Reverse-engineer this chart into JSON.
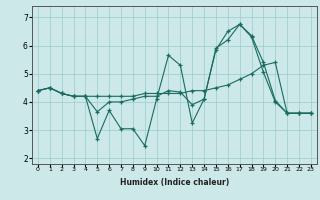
{
  "xlabel": "Humidex (Indice chaleur)",
  "ylabel": "",
  "bg_color": "#cce8e8",
  "line_color": "#1a6b60",
  "grid_color": "#99cccc",
  "xlim": [
    -0.5,
    23.5
  ],
  "ylim": [
    1.8,
    7.4
  ],
  "xticks": [
    0,
    1,
    2,
    3,
    4,
    5,
    6,
    7,
    8,
    9,
    10,
    11,
    12,
    13,
    14,
    15,
    16,
    17,
    18,
    19,
    20,
    21,
    22,
    23
  ],
  "yticks": [
    2,
    3,
    4,
    5,
    6,
    7
  ],
  "series": [
    {
      "x": [
        0,
        1,
        2,
        3,
        4,
        5,
        6,
        7,
        8,
        9,
        10,
        11,
        12,
        13,
        14,
        15,
        16,
        17,
        18,
        19,
        20,
        21,
        22,
        23
      ],
      "y": [
        4.4,
        4.5,
        4.3,
        4.2,
        4.2,
        4.2,
        4.2,
        4.2,
        4.2,
        4.3,
        4.3,
        4.3,
        4.3,
        4.4,
        4.4,
        4.5,
        4.6,
        4.8,
        5.0,
        5.3,
        5.4,
        3.6,
        3.6,
        3.6
      ]
    },
    {
      "x": [
        0,
        1,
        2,
        3,
        4,
        5,
        6,
        7,
        8,
        9,
        10,
        11,
        12,
        13,
        14,
        15,
        16,
        17,
        18,
        19,
        20,
        21,
        22,
        23
      ],
      "y": [
        4.4,
        4.5,
        4.3,
        4.2,
        4.2,
        2.7,
        3.7,
        3.05,
        3.05,
        2.45,
        4.1,
        5.65,
        5.3,
        3.25,
        4.1,
        5.85,
        6.5,
        6.75,
        6.35,
        5.4,
        4.05,
        3.6,
        3.6,
        3.6
      ]
    },
    {
      "x": [
        0,
        1,
        2,
        3,
        4,
        5,
        6,
        7,
        8,
        9,
        10,
        11,
        12,
        13,
        14,
        15,
        16,
        17,
        18,
        19,
        20,
        21,
        22,
        23
      ],
      "y": [
        4.4,
        4.5,
        4.3,
        4.2,
        4.2,
        3.65,
        4.0,
        4.0,
        4.1,
        4.2,
        4.2,
        4.4,
        4.35,
        3.9,
        4.1,
        5.9,
        6.2,
        6.75,
        6.3,
        5.05,
        4.0,
        3.6,
        3.6,
        3.6
      ]
    }
  ]
}
